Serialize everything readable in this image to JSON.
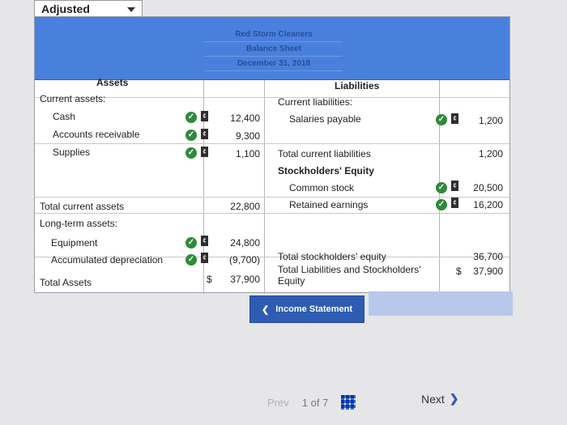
{
  "dropdown": {
    "selected": "Adjusted"
  },
  "header": {
    "company": "Red Storm Cleaners",
    "statement": "Balance Sheet",
    "date": "December 31, 2018"
  },
  "assets": {
    "heading": "Assets",
    "current_label": "Current assets:",
    "items": [
      {
        "label": "Cash",
        "value": "12,400"
      },
      {
        "label": "Accounts receivable",
        "value": "9,300"
      },
      {
        "label": "Supplies",
        "value": "1,100"
      }
    ],
    "total_current_label": "Total current assets",
    "total_current_value": "22,800",
    "long_term_label": "Long-term assets:",
    "equipment_label": "Equipment",
    "equipment_value": "24,800",
    "accum_label": "Accumulated depreciation",
    "accum_value": "(9,700)",
    "total_label": "Total Assets",
    "total_currency": "$",
    "total_value": "37,900"
  },
  "liabilities": {
    "heading": "Liabilities",
    "current_label": "Current liabilities:",
    "salaries_label": "Salaries payable",
    "salaries_value": "1,200",
    "total_current_label": "Total current liabilities",
    "total_current_value": "1,200",
    "equity_heading": "Stockholders' Equity",
    "common_label": "Common stock",
    "common_value": "20,500",
    "retained_label": "Retained earnings",
    "retained_value": "16,200",
    "total_equity_label": "Total stockholders' equity",
    "total_equity_value": "36,700",
    "total_le_label_1": "Total Liabilities and Stockholders'",
    "total_le_label_2": "Equity",
    "total_le_currency": "$",
    "total_le_value": "37,900"
  },
  "buttons": {
    "income_statement": "Income Statement"
  },
  "pager": {
    "prev": "Prev",
    "current": "1",
    "of": "of",
    "total": "7",
    "next": "Next"
  },
  "icons": {
    "check": "check-icon",
    "flag": "flag-icon",
    "grid": "grid-icon"
  },
  "colors": {
    "banner": "#4a80dd",
    "check": "#2e8b3a",
    "button": "#2e5cb2"
  }
}
